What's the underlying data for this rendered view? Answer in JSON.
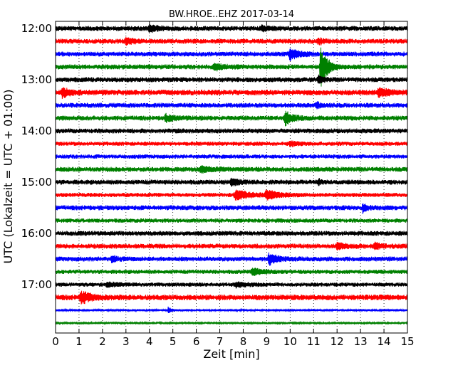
{
  "chart_data": {
    "type": "line",
    "title": "BW.HROE..EHZ 2017-03-14",
    "xlabel": "Zeit  [min]",
    "ylabel": "UTC (Lokalzeit = UTC + 01:00)",
    "xlim": [
      0,
      15
    ],
    "x_ticks": [
      "0",
      "1",
      "2",
      "3",
      "4",
      "5",
      "6",
      "7",
      "8",
      "9",
      "10",
      "11",
      "12",
      "13",
      "14",
      "15"
    ],
    "y_ticks": [
      "12:00",
      "13:00",
      "14:00",
      "15:00",
      "16:00",
      "17:00"
    ],
    "row_interval_minutes": 15,
    "grid": true,
    "legend": "none",
    "series_colors": [
      "#000000",
      "#ff0000",
      "#0000ff",
      "#008000"
    ],
    "traces": [
      {
        "start": "12:00",
        "color": "#000000",
        "amp": 3.5,
        "events": [
          {
            "t": 4.0,
            "a": 4,
            "w": 0.4
          },
          {
            "t": 8.8,
            "a": 3,
            "w": 0.3
          }
        ]
      },
      {
        "start": "12:15",
        "color": "#ff0000",
        "amp": 3.5,
        "events": [
          {
            "t": 3.0,
            "a": 4,
            "w": 0.3
          },
          {
            "t": 11.2,
            "a": 4,
            "w": 0.2
          }
        ]
      },
      {
        "start": "12:30",
        "color": "#0000ff",
        "amp": 3.5,
        "events": [
          {
            "t": 10.0,
            "a": 7,
            "w": 0.4
          }
        ]
      },
      {
        "start": "12:45",
        "color": "#008000",
        "amp": 3.5,
        "events": [
          {
            "t": 6.8,
            "a": 4,
            "w": 0.4
          },
          {
            "t": 11.3,
            "a": 32,
            "w": 0.25
          }
        ]
      },
      {
        "start": "13:00",
        "color": "#000000",
        "amp": 3.5,
        "events": [
          {
            "t": 11.2,
            "a": 5,
            "w": 0.2
          }
        ]
      },
      {
        "start": "13:15",
        "color": "#ff0000",
        "amp": 4,
        "events": [
          {
            "t": 0.3,
            "a": 6,
            "w": 0.3
          },
          {
            "t": 13.8,
            "a": 5,
            "w": 0.5
          }
        ]
      },
      {
        "start": "13:30",
        "color": "#0000ff",
        "amp": 3.5,
        "events": [
          {
            "t": 11.1,
            "a": 4,
            "w": 0.2
          }
        ]
      },
      {
        "start": "13:45",
        "color": "#008000",
        "amp": 3.5,
        "events": [
          {
            "t": 4.7,
            "a": 4,
            "w": 0.4
          },
          {
            "t": 9.8,
            "a": 9,
            "w": 0.3
          }
        ]
      },
      {
        "start": "14:00",
        "color": "#000000",
        "amp": 3.5,
        "events": []
      },
      {
        "start": "14:15",
        "color": "#ff0000",
        "amp": 3,
        "events": [
          {
            "t": 10.0,
            "a": 3,
            "w": 0.3
          }
        ]
      },
      {
        "start": "14:30",
        "color": "#0000ff",
        "amp": 3,
        "events": []
      },
      {
        "start": "14:45",
        "color": "#008000",
        "amp": 3.5,
        "events": [
          {
            "t": 6.2,
            "a": 4,
            "w": 0.4
          }
        ]
      },
      {
        "start": "15:00",
        "color": "#000000",
        "amp": 3.5,
        "events": [
          {
            "t": 7.5,
            "a": 5,
            "w": 0.3
          },
          {
            "t": 11.2,
            "a": 4,
            "w": 0.1
          }
        ]
      },
      {
        "start": "15:15",
        "color": "#ff0000",
        "amp": 3,
        "events": [
          {
            "t": 7.7,
            "a": 7,
            "w": 0.5
          },
          {
            "t": 9.0,
            "a": 6,
            "w": 0.5
          }
        ]
      },
      {
        "start": "15:30",
        "color": "#0000ff",
        "amp": 3.5,
        "events": [
          {
            "t": 13.1,
            "a": 6,
            "w": 0.15
          }
        ]
      },
      {
        "start": "15:45",
        "color": "#008000",
        "amp": 3,
        "events": []
      },
      {
        "start": "16:00",
        "color": "#000000",
        "amp": 3.5,
        "events": []
      },
      {
        "start": "16:15",
        "color": "#ff0000",
        "amp": 3.5,
        "events": [
          {
            "t": 12.0,
            "a": 5,
            "w": 0.3
          },
          {
            "t": 13.6,
            "a": 4,
            "w": 0.3
          }
        ]
      },
      {
        "start": "16:30",
        "color": "#0000ff",
        "amp": 3.5,
        "events": [
          {
            "t": 2.4,
            "a": 4,
            "w": 0.2
          },
          {
            "t": 9.1,
            "a": 8,
            "w": 0.3
          }
        ]
      },
      {
        "start": "16:45",
        "color": "#008000",
        "amp": 3,
        "events": [
          {
            "t": 8.4,
            "a": 5,
            "w": 0.4
          }
        ]
      },
      {
        "start": "17:00",
        "color": "#000000",
        "amp": 3,
        "events": [
          {
            "t": 2.2,
            "a": 3,
            "w": 0.4
          },
          {
            "t": 7.7,
            "a": 3,
            "w": 0.4
          }
        ]
      },
      {
        "start": "17:15",
        "color": "#ff0000",
        "amp": 4,
        "events": [
          {
            "t": 1.1,
            "a": 8,
            "w": 0.4
          }
        ]
      },
      {
        "start": "17:30",
        "color": "#0000ff",
        "amp": 1.5,
        "events": [
          {
            "t": 4.8,
            "a": 4,
            "w": 0.15
          }
        ]
      },
      {
        "start": "17:45",
        "color": "#008000",
        "amp": 1.5,
        "events": []
      }
    ]
  }
}
